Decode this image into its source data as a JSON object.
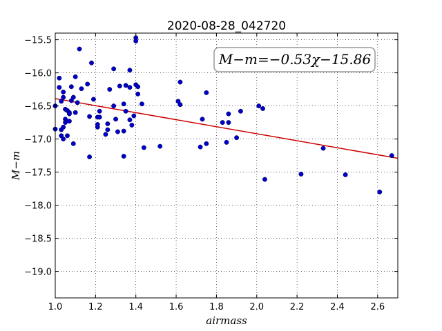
{
  "chart_data": {
    "type": "scatter",
    "title": "2020-08-28_042720",
    "xlabel": "airmass",
    "ylabel": "M−m",
    "xlim": [
      1.0,
      2.7
    ],
    "ylim": [
      -19.4,
      -15.4
    ],
    "y_inverted": true,
    "grid": true,
    "x_ticks": [
      "1.0",
      "1.2",
      "1.4",
      "1.6",
      "1.8",
      "2.0",
      "2.2",
      "2.4",
      "2.6"
    ],
    "y_ticks": [
      "−15.5",
      "−16.0",
      "−16.5",
      "−17.0",
      "−17.5",
      "−18.0",
      "−18.5",
      "−19.0"
    ],
    "annotation": "M−m=−0.53χ−15.86",
    "fit": {
      "slope": -0.53,
      "intercept": -15.86,
      "color": "#cc0000"
    },
    "point_color": "#0000cc",
    "points": [
      {
        "x": 1.0,
        "y": -16.5
      },
      {
        "x": 1.0,
        "y": -16.85
      },
      {
        "x": 1.02,
        "y": -16.08
      },
      {
        "x": 1.02,
        "y": -16.22
      },
      {
        "x": 1.03,
        "y": -16.43
      },
      {
        "x": 1.03,
        "y": -16.86
      },
      {
        "x": 1.03,
        "y": -16.95
      },
      {
        "x": 1.04,
        "y": -16.29
      },
      {
        "x": 1.04,
        "y": -16.37
      },
      {
        "x": 1.04,
        "y": -16.82
      },
      {
        "x": 1.04,
        "y": -17.0
      },
      {
        "x": 1.05,
        "y": -16.55
      },
      {
        "x": 1.05,
        "y": -16.7
      },
      {
        "x": 1.05,
        "y": -16.75
      },
      {
        "x": 1.06,
        "y": -16.95
      },
      {
        "x": 1.06,
        "y": -16.57
      },
      {
        "x": 1.07,
        "y": -16.6
      },
      {
        "x": 1.07,
        "y": -16.62
      },
      {
        "x": 1.07,
        "y": -16.73
      },
      {
        "x": 1.08,
        "y": -16.21
      },
      {
        "x": 1.08,
        "y": -16.42
      },
      {
        "x": 1.09,
        "y": -16.37
      },
      {
        "x": 1.09,
        "y": -17.07
      },
      {
        "x": 1.1,
        "y": -16.6
      },
      {
        "x": 1.1,
        "y": -16.06
      },
      {
        "x": 1.11,
        "y": -16.45
      },
      {
        "x": 1.12,
        "y": -15.64
      },
      {
        "x": 1.13,
        "y": -16.24
      },
      {
        "x": 1.16,
        "y": -16.17
      },
      {
        "x": 1.17,
        "y": -16.66
      },
      {
        "x": 1.17,
        "y": -17.27
      },
      {
        "x": 1.18,
        "y": -15.85
      },
      {
        "x": 1.19,
        "y": -16.4
      },
      {
        "x": 1.21,
        "y": -16.67
      },
      {
        "x": 1.21,
        "y": -16.78
      },
      {
        "x": 1.21,
        "y": -16.82
      },
      {
        "x": 1.22,
        "y": -16.58
      },
      {
        "x": 1.22,
        "y": -16.67
      },
      {
        "x": 1.25,
        "y": -16.93
      },
      {
        "x": 1.26,
        "y": -16.77
      },
      {
        "x": 1.26,
        "y": -16.86
      },
      {
        "x": 1.27,
        "y": -16.25
      },
      {
        "x": 1.29,
        "y": -15.94
      },
      {
        "x": 1.29,
        "y": -16.5
      },
      {
        "x": 1.3,
        "y": -16.7
      },
      {
        "x": 1.31,
        "y": -16.89
      },
      {
        "x": 1.32,
        "y": -16.2
      },
      {
        "x": 1.34,
        "y": -17.26
      },
      {
        "x": 1.34,
        "y": -16.88
      },
      {
        "x": 1.34,
        "y": -16.47
      },
      {
        "x": 1.35,
        "y": -16.19
      },
      {
        "x": 1.35,
        "y": -16.58
      },
      {
        "x": 1.37,
        "y": -16.71
      },
      {
        "x": 1.37,
        "y": -16.22
      },
      {
        "x": 1.37,
        "y": -15.96
      },
      {
        "x": 1.38,
        "y": -16.79
      },
      {
        "x": 1.39,
        "y": -16.65
      },
      {
        "x": 1.4,
        "y": -15.47
      },
      {
        "x": 1.4,
        "y": -15.52
      },
      {
        "x": 1.4,
        "y": -16.18
      },
      {
        "x": 1.41,
        "y": -16.21
      },
      {
        "x": 1.41,
        "y": -16.32
      },
      {
        "x": 1.43,
        "y": -16.47
      },
      {
        "x": 1.44,
        "y": -17.13
      },
      {
        "x": 1.52,
        "y": -17.11
      },
      {
        "x": 1.61,
        "y": -16.43
      },
      {
        "x": 1.62,
        "y": -16.14
      },
      {
        "x": 1.62,
        "y": -16.48
      },
      {
        "x": 1.72,
        "y": -17.12
      },
      {
        "x": 1.73,
        "y": -16.7
      },
      {
        "x": 1.75,
        "y": -17.07
      },
      {
        "x": 1.75,
        "y": -16.3
      },
      {
        "x": 1.83,
        "y": -16.75
      },
      {
        "x": 1.85,
        "y": -17.05
      },
      {
        "x": 1.86,
        "y": -16.62
      },
      {
        "x": 1.86,
        "y": -16.75
      },
      {
        "x": 1.9,
        "y": -16.98
      },
      {
        "x": 1.92,
        "y": -16.58
      },
      {
        "x": 2.01,
        "y": -16.5
      },
      {
        "x": 2.03,
        "y": -16.54
      },
      {
        "x": 2.04,
        "y": -17.61
      },
      {
        "x": 2.22,
        "y": -17.53
      },
      {
        "x": 2.33,
        "y": -17.14
      },
      {
        "x": 2.44,
        "y": -17.54
      },
      {
        "x": 2.61,
        "y": -17.8
      },
      {
        "x": 2.67,
        "y": -17.25
      }
    ]
  }
}
